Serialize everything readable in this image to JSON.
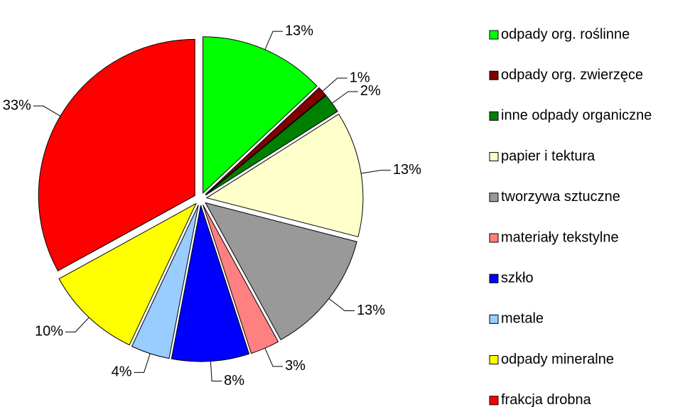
{
  "chart_data": {
    "type": "pie",
    "categories": [
      "odpady org. roślinne",
      "odpady org. zwierzęce",
      "inne odpady organiczne",
      "papier i tektura",
      "tworzywa sztuczne",
      "materiały tekstylne",
      "szkło",
      "metale",
      "odpady mineralne",
      "frakcja drobna"
    ],
    "values": [
      13,
      1,
      2,
      13,
      13,
      3,
      8,
      4,
      10,
      33
    ],
    "value_labels": [
      "13%",
      "1%",
      "2%",
      "13%",
      "13%",
      "3%",
      "8%",
      "4%",
      "10%",
      "33%"
    ],
    "colors": [
      "#00ff00",
      "#800000",
      "#008000",
      "#ffffcc",
      "#999999",
      "#ff8080",
      "#0000ff",
      "#99ccff",
      "#ffff00",
      "#ff0000"
    ],
    "legend": "right"
  }
}
